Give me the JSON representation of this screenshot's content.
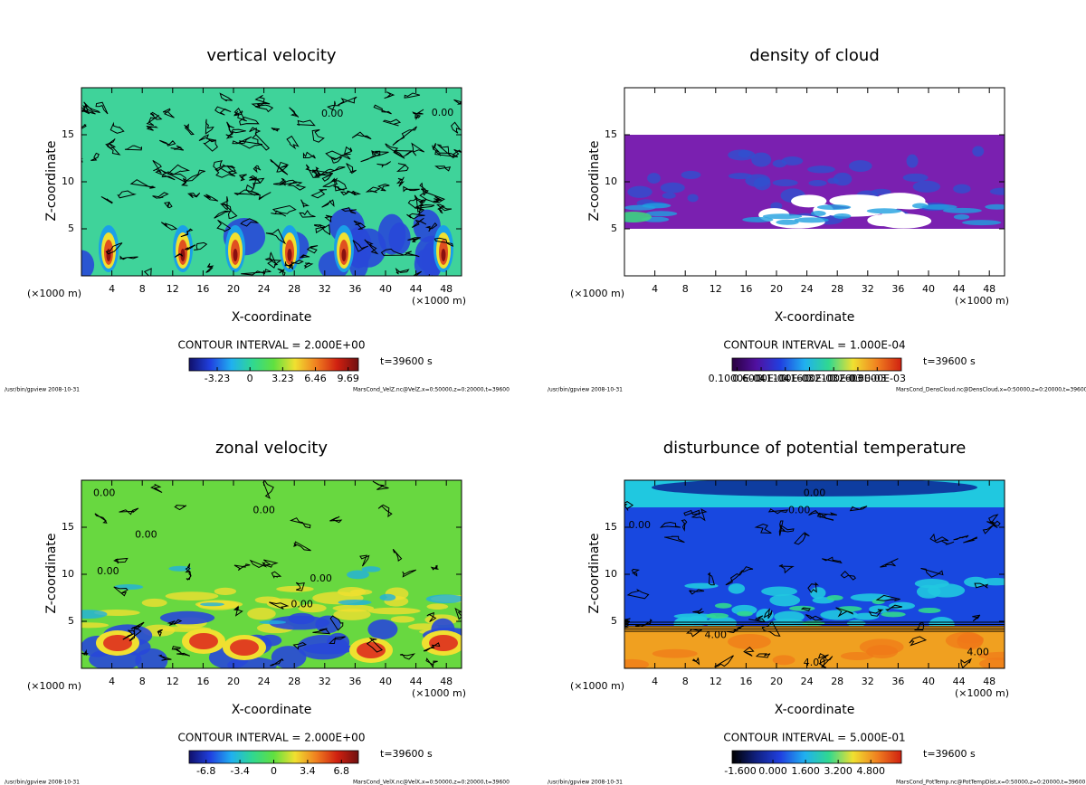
{
  "chart_data": [
    {
      "type": "heatmap",
      "title": "vertical velocity",
      "xlabel": "X-coordinate",
      "ylabel": "Z-coordinate",
      "x_unit": "(×1000 m)",
      "xlim": [
        0,
        50
      ],
      "ylim": [
        0,
        20
      ],
      "xticks": [
        4,
        8,
        12,
        16,
        20,
        24,
        28,
        32,
        36,
        40,
        44,
        48
      ],
      "yticks": [
        5,
        10,
        15
      ],
      "contour_interval": "CONTOUR INTERVAL = 2.000E+00",
      "time": "t=39600 s",
      "footer_left": "/usr/bin/gpview  2008-10-31",
      "footer_right": "MarsCond_VelZ.nc@VelZ,x=0:50000,z=0:20000,t=39600",
      "field_colors": [
        "#3fd39a",
        "#2848d8",
        "#1aa0e8",
        "#f0e030",
        "#e05020",
        "#8a1010"
      ],
      "contour_labels": [
        {
          "text": "0.00",
          "x": 33,
          "y": 17.2
        },
        {
          "text": "0.00",
          "x": 47.5,
          "y": 17.3
        }
      ],
      "colorbar": {
        "clim": [
          -6,
          10.7
        ],
        "colors": [
          "#10106a",
          "#2040e0",
          "#20b0f0",
          "#30d890",
          "#60e040",
          "#f0e030",
          "#f08020",
          "#d02010",
          "#701010"
        ],
        "ticks": [
          -3.23,
          0,
          3.23,
          6.46,
          9.69
        ]
      }
    },
    {
      "type": "heatmap",
      "title": "density of cloud",
      "xlabel": "X-coordinate",
      "ylabel": "Z-coordinate",
      "x_unit": "(×1000 m)",
      "xlim": [
        0,
        50
      ],
      "ylim": [
        0,
        20
      ],
      "xticks": [
        4,
        8,
        12,
        16,
        20,
        24,
        28,
        32,
        36,
        40,
        44,
        48
      ],
      "yticks": [
        5,
        10,
        15
      ],
      "contour_interval": "CONTOUR INTERVAL = 1.000E-04",
      "time": "t=39600 s",
      "footer_left": "/usr/bin/gpview  2008-10-31",
      "footer_right": "MarsCond_DensCloud.nc@DensCloud,x=0:50000,z=0:20000,t=39600",
      "field_colors": [
        "#ffffff",
        "#7a20b0",
        "#3050d0",
        "#20a0e0",
        "#40d080"
      ],
      "contour_labels": [],
      "colorbar": {
        "clim": [
          0,
          0.00035
        ],
        "colors": [
          "#2a0040",
          "#5010a0",
          "#2040e0",
          "#20b0f0",
          "#30d890",
          "#f0e030",
          "#f08020",
          "#d02010"
        ],
        "ticks": [
          {
            "value": 1e-05,
            "label": "0.1000E-04"
          },
          {
            "value": 6e-05,
            "label": "0.6000E-04"
          },
          {
            "value": 0.00011,
            "label": "0.1100E-03"
          },
          {
            "value": 0.00016,
            "label": "0.1600E-03"
          },
          {
            "value": 0.00021,
            "label": "0.2100E-03"
          },
          {
            "value": 0.00026,
            "label": "0.2600E-03"
          },
          {
            "value": 0.0003,
            "label": "0.3000E-03"
          }
        ]
      }
    },
    {
      "type": "heatmap",
      "title": "zonal velocity",
      "xlabel": "X-coordinate",
      "ylabel": "Z-coordinate",
      "x_unit": "(×1000 m)",
      "xlim": [
        0,
        50
      ],
      "ylim": [
        0,
        20
      ],
      "xticks": [
        4,
        8,
        12,
        16,
        20,
        24,
        28,
        32,
        36,
        40,
        44,
        48
      ],
      "yticks": [
        5,
        10,
        15
      ],
      "contour_interval": "CONTOUR INTERVAL = 2.000E+00",
      "time": "t=39600 s",
      "footer_left": "/usr/bin/gpview  2008-10-31",
      "footer_right": "MarsCond_VelX.nc@VelX,x=0:50000,z=0:20000,t=39600",
      "field_colors": [
        "#68d840",
        "#a0e040",
        "#2848d8",
        "#f0e030",
        "#e04020",
        "#20b0e0"
      ],
      "contour_labels": [
        {
          "text": "0.00",
          "x": 3,
          "y": 18.6
        },
        {
          "text": "0.00",
          "x": 24,
          "y": 16.8
        },
        {
          "text": "0.00",
          "x": 8.5,
          "y": 14.2
        },
        {
          "text": "0.00",
          "x": 3.5,
          "y": 10.3
        },
        {
          "text": "0.00",
          "x": 31.5,
          "y": 9.5
        },
        {
          "text": "0.00",
          "x": 29,
          "y": 6.8
        }
      ],
      "colorbar": {
        "clim": [
          -8.5,
          8.5
        ],
        "colors": [
          "#10106a",
          "#2040e0",
          "#20b0f0",
          "#30d890",
          "#60e040",
          "#f0e030",
          "#f08020",
          "#d02010",
          "#701010"
        ],
        "ticks": [
          -6.8,
          -3.4,
          0,
          3.4,
          6.8
        ]
      }
    },
    {
      "type": "heatmap",
      "title": "disturbunce of potential temperature",
      "xlabel": "X-coordinate",
      "ylabel": "Z-coordinate",
      "x_unit": "(×1000 m)",
      "xlim": [
        0,
        50
      ],
      "ylim": [
        0,
        20
      ],
      "xticks": [
        4,
        8,
        12,
        16,
        20,
        24,
        28,
        32,
        36,
        40,
        44,
        48
      ],
      "yticks": [
        5,
        10,
        15
      ],
      "contour_interval": "CONTOUR INTERVAL = 5.000E-01",
      "time": "t=39600 s",
      "footer_left": "/usr/bin/gpview  2008-10-31",
      "footer_right": "MarsCond_PotTemp.nc@PotTempDist,x=0:50000,z=0:20000,t=39600",
      "field_colors": [
        "#1848e0",
        "#f0a020",
        "#20c8e0",
        "#30d890",
        "#f07818",
        "#0a1a90"
      ],
      "contour_labels": [
        {
          "text": "0.00",
          "x": 25,
          "y": 18.6
        },
        {
          "text": "0.00",
          "x": 23,
          "y": 16.8
        },
        {
          "text": "0.00",
          "x": 2,
          "y": 15.2
        },
        {
          "text": "4.00",
          "x": 25,
          "y": 0.6
        },
        {
          "text": "4.00",
          "x": 46.5,
          "y": 1.7
        },
        {
          "text": "4.00",
          "x": 12,
          "y": 3.5
        }
      ],
      "colorbar": {
        "clim": [
          -2,
          6.3
        ],
        "colors": [
          "#000000",
          "#102080",
          "#2040e0",
          "#20b0f0",
          "#30d890",
          "#f0e030",
          "#f08020",
          "#d02010"
        ],
        "ticks": [
          {
            "value": -1.6,
            "label": "-1.600"
          },
          {
            "value": 0,
            "label": "0.000"
          },
          {
            "value": 1.6,
            "label": "1.600"
          },
          {
            "value": 3.2,
            "label": "3.200"
          },
          {
            "value": 4.8,
            "label": "4.800"
          }
        ]
      }
    }
  ]
}
